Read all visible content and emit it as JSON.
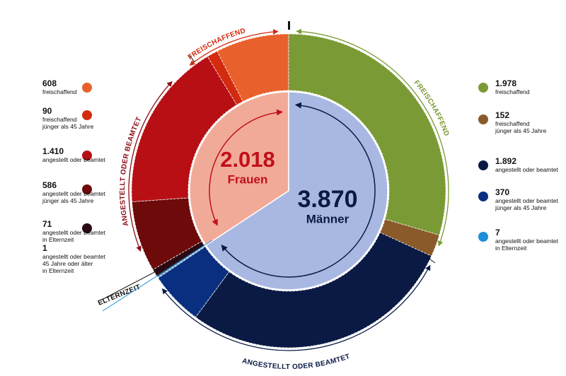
{
  "chart_data": {
    "type": "sunburst",
    "groups": [
      {
        "name": "Frauen",
        "value": 2018,
        "value_label": "2.018",
        "color": "#f2aa98",
        "text_color": "#c0101a",
        "segments": {
          "values": [
            608,
            90,
            1410,
            586,
            71,
            1
          ],
          "value_labels": [
            "608",
            "90",
            "1.410",
            "586",
            "71",
            "1"
          ],
          "labels": [
            [
              "freischaffend"
            ],
            [
              "freischaffend",
              "jünger als 45 Jahre"
            ],
            [
              "angestellt oder beamtet"
            ],
            [
              "angestellt oder beamtet",
              "jünger als 45 Jahre"
            ],
            [
              "angestellt oder beamtet",
              "in Elternzeit"
            ],
            [
              "angestellt oder beamtet",
              "45 Jahre oder älter",
              "in Elternzeit"
            ]
          ],
          "colors": [
            "#e8612c",
            "#d42a10",
            "#b80f14",
            "#6e0a0a",
            "#2a0a12",
            "#ffffff"
          ]
        }
      },
      {
        "name": "Männer",
        "value": 3870,
        "value_label": "3.870",
        "color": "#a9b8e2",
        "text_color": "#0a1a45",
        "segments": {
          "values": [
            1978,
            152,
            1892,
            370,
            7
          ],
          "value_labels": [
            "1.978",
            "152",
            "1.892",
            "370",
            "7"
          ],
          "labels": [
            [
              "freischaffend"
            ],
            [
              "freischaffend",
              "jünger als 45 Jahre"
            ],
            [
              "angestellt oder beamtet"
            ],
            [
              "angestellt oder beamtet",
              "jünger als 45 Jahre"
            ],
            [
              "angestellt oder beamtet",
              "in Elternzeit"
            ]
          ],
          "colors": [
            "#7a9a35",
            "#8b5a2b",
            "#0a1a45",
            "#0b2f80",
            "#1a8ed8"
          ]
        }
      }
    ],
    "arc_labels": [
      {
        "text": "FREISCHAFFEND",
        "color": "#d42a10"
      },
      {
        "text": "ANGESTELLT ODER BEAMTET",
        "color": "#8a0c14"
      },
      {
        "text": "ELTERNZEIT",
        "color": "#111111"
      },
      {
        "text": "FREISCHAFFEND",
        "color": "#7a9a35"
      },
      {
        "text": "ANGESTELLT ODER BEAMTET",
        "color": "#0a1a45"
      }
    ]
  }
}
